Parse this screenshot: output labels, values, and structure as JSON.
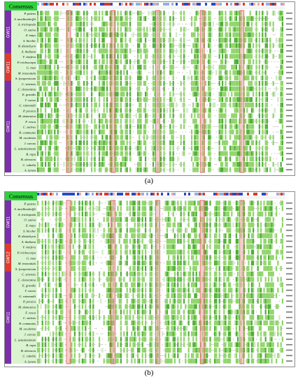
{
  "panels": [
    {
      "id": "a",
      "caption": "(a)",
      "consensus_label": "Consensus",
      "group_labels": [
        "GW11",
        "GW11",
        "GW11"
      ],
      "group_colors": [
        "#7b2fa8",
        "#e03a2e",
        "#7b2fa8"
      ],
      "species_labels": [
        "P. patens",
        "S. moellendorffii",
        "A. trichopoda",
        "O. sativa",
        "Z. mays",
        "S. bicolor",
        "B. distachyon",
        "A. thaliana",
        "V. vinifera",
        "P. trichocarpa",
        "G. max",
        "M. truncatula",
        "S. lycopersicum",
        "C. sinensis",
        "C. clementina",
        "E. grandis",
        "T. cacao",
        "G. raimondii",
        "P. persica",
        "M. domestica",
        "F. vesca",
        "C. sativus",
        "R. communis",
        "M. esculenta",
        "J. curcas",
        "L. usitatissimum",
        "B. rapa",
        "B. oleracea",
        "C. rubella",
        "A. lyrata"
      ]
    },
    {
      "id": "b",
      "caption": "(b)",
      "consensus_label": "Consensus",
      "group_labels": [
        "GW11",
        "GW12",
        "GW11"
      ],
      "group_colors": [
        "#7b2fa8",
        "#e03a2e",
        "#7b2fa8"
      ],
      "species_labels": [
        "P. patens",
        "S. moellendorffii",
        "A. trichopoda",
        "O. sativa",
        "Z. mays",
        "S. bicolor",
        "B. distachyon",
        "A. thaliana",
        "V. vinifera",
        "P. trichocarpa",
        "G. max",
        "M. truncatula",
        "S. lycopersicum",
        "C. sinensis",
        "C. clementina",
        "E. grandis",
        "T. cacao",
        "G. raimondii",
        "P. persica",
        "M. domestica",
        "F. vesca",
        "C. sativus",
        "R. communis",
        "M. esculenta",
        "J. curcas",
        "L. usitatissimum",
        "B. rapa",
        "B. oleracea",
        "C. rubella",
        "A. lyrata"
      ]
    }
  ],
  "colors": {
    "consensus_bg": "#2fd13c",
    "identity_green": "#8fd46a",
    "dark_green": "#4fae35",
    "highlight_red": "#e8a8a0",
    "frame_red": "#d94040",
    "conservation_blue": "#2a49c8",
    "conservation_red": "#d63a2a"
  }
}
